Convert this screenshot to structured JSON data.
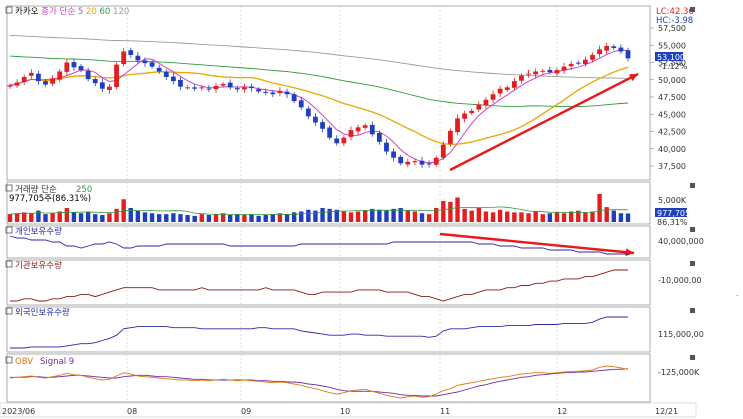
{
  "chart_data": {
    "type": "line",
    "colors": {
      "up": "#e02020",
      "down": "#1f3fbf",
      "ma5": "#cc44cc",
      "ma20": "#e8a800",
      "ma60": "#2e9a3c",
      "ma120": "#9a9a9a",
      "arrow": "#e8191b",
      "individual": "#2a2aa8",
      "institution": "#8b1a1a",
      "foreign": "#2a2aa8",
      "obv": "#e07b1a",
      "obv_signal": "#7030a0"
    },
    "x_axis": {
      "ticks": [
        "2023/06",
        "08",
        "09",
        "10",
        "11",
        "12",
        "12/21"
      ]
    },
    "price_panel": {
      "title_parts": [
        {
          "text": "카카오",
          "color": "#000000"
        },
        {
          "text": "종가 단순",
          "color": "#cc44cc"
        },
        {
          "text": "5",
          "color": "#cc44cc"
        },
        {
          "text": "20",
          "color": "#e8a800"
        },
        {
          "text": "60",
          "color": "#2e9a3c"
        },
        {
          "text": "120",
          "color": "#9a9a9a"
        }
      ],
      "lc": "LC:42.36",
      "hc": "HC:-3.98",
      "y_ticks": [
        "57,500",
        "55,000",
        "52,500",
        "50,000",
        "47,500",
        "45,000",
        "42,500",
        "40,000",
        "37,500"
      ],
      "last_price": "53,100",
      "last_change": "-1.12%",
      "trend": "rising",
      "closes": [
        49200,
        49600,
        50400,
        51000,
        49800,
        49300,
        50200,
        51200,
        52500,
        51800,
        51400,
        50100,
        49500,
        48700,
        49000,
        52200,
        54100,
        53600,
        52800,
        52400,
        51900,
        51200,
        50400,
        49800,
        49000,
        48900,
        48700,
        48900,
        48700,
        49100,
        49400,
        48900,
        48600,
        48900,
        48800,
        48300,
        48100,
        47900,
        48400,
        47900,
        46900,
        46000,
        44700,
        43800,
        42900,
        41600,
        40800,
        41600,
        42700,
        43100,
        43400,
        42100,
        41000,
        39600,
        38700,
        37900,
        38100,
        38200,
        37700,
        37800,
        38700,
        40600,
        42600,
        44400,
        45100,
        45500,
        46400,
        47100,
        47900,
        48700,
        48900,
        49800,
        50600,
        50900,
        51200,
        51300,
        51100,
        51400,
        51900,
        52300,
        52400,
        52900,
        53600,
        54400,
        54900,
        54600,
        54100,
        53100
      ]
    },
    "volume_panel": {
      "title": "거래량 단순",
      "period": "250",
      "info": "977,705주(86.31%)",
      "y_ticks": [
        "5,000K"
      ],
      "last_label": "977,705",
      "pct_label": "86.31%",
      "volumes": [
        900,
        1000,
        1100,
        1000,
        1300,
        900,
        1000,
        1200,
        1600,
        1100,
        1000,
        1200,
        900,
        800,
        1000,
        1500,
        2600,
        1600,
        1300,
        1100,
        1000,
        900,
        900,
        1000,
        900,
        800,
        700,
        900,
        800,
        900,
        1000,
        800,
        900,
        800,
        900,
        700,
        800,
        900,
        1000,
        900,
        1100,
        1200,
        1400,
        1300,
        1600,
        1500,
        1400,
        1200,
        1100,
        1200,
        1300,
        1500,
        1400,
        1300,
        1500,
        1600,
        1300,
        1200,
        1000,
        900,
        1600,
        2400,
        2300,
        2800,
        1500,
        1300,
        1600,
        1200,
        1100,
        1400,
        1200,
        1100,
        1100,
        1000,
        1200,
        900,
        1000,
        1100,
        1000,
        1200,
        1300,
        1100,
        1200,
        3200,
        1700,
        1300,
        1000,
        978
      ]
    },
    "individual_panel": {
      "title": "개인보유수량",
      "y_ticks": [
        "40,000,000"
      ],
      "values": [
        46,
        45,
        45,
        44,
        44,
        44,
        43,
        43,
        41,
        41,
        40,
        41,
        42,
        42,
        43,
        42,
        40,
        40,
        41,
        41,
        41,
        41,
        42,
        42,
        42,
        42,
        42,
        42,
        42,
        42,
        42,
        41,
        41,
        41,
        41,
        41,
        41,
        41,
        41,
        41,
        41,
        42,
        42,
        42,
        42,
        42,
        42,
        42,
        42,
        42,
        42,
        42,
        42,
        42,
        43,
        43,
        43,
        43,
        43,
        43,
        43,
        43,
        43,
        43,
        43,
        43,
        42,
        42,
        42,
        41,
        41,
        41,
        40,
        40,
        40,
        40,
        39,
        39,
        39,
        39,
        38,
        38,
        38,
        38,
        37,
        37,
        37,
        37
      ]
    },
    "institution_panel": {
      "title": "기관보유수량",
      "y_ticks": [
        "-10,000,00"
      ],
      "values": [
        -20,
        -20,
        -19,
        -19,
        -20,
        -20,
        -19,
        -19,
        -18,
        -18,
        -17,
        -17,
        -18,
        -17,
        -16,
        -15,
        -14,
        -14,
        -14,
        -14,
        -14,
        -15,
        -15,
        -15,
        -15,
        -15,
        -15,
        -14,
        -15,
        -15,
        -15,
        -15,
        -15,
        -15,
        -15,
        -15,
        -14,
        -15,
        -15,
        -15,
        -15,
        -16,
        -17,
        -17,
        -16,
        -16,
        -16,
        -16,
        -16,
        -15,
        -15,
        -15,
        -15,
        -16,
        -16,
        -16,
        -16,
        -17,
        -18,
        -18,
        -19,
        -20,
        -19,
        -18,
        -17,
        -17,
        -16,
        -15,
        -15,
        -15,
        -14,
        -14,
        -13,
        -13,
        -12,
        -12,
        -11,
        -11,
        -10,
        -10,
        -10,
        -9,
        -9,
        -8,
        -7,
        -6,
        -6,
        -6
      ]
    },
    "foreign_panel": {
      "title": "외국인보유수량",
      "y_ticks": [
        "115,000,00"
      ],
      "values": [
        88,
        88,
        88,
        89,
        89,
        89,
        89,
        89,
        90,
        91,
        92,
        92,
        93,
        95,
        97,
        100,
        106,
        107,
        108,
        108,
        108,
        108,
        108,
        107,
        107,
        107,
        107,
        106,
        106,
        106,
        106,
        106,
        106,
        106,
        106,
        107,
        107,
        106,
        106,
        106,
        106,
        104,
        103,
        102,
        101,
        100,
        100,
        100,
        101,
        101,
        100,
        100,
        100,
        99,
        99,
        99,
        99,
        99,
        99,
        98,
        99,
        104,
        106,
        106,
        106,
        107,
        108,
        108,
        108,
        108,
        109,
        109,
        109,
        109,
        110,
        110,
        110,
        110,
        111,
        111,
        111,
        111,
        112,
        115,
        117,
        117,
        117,
        117
      ]
    },
    "obv_panel": {
      "title": "OBV",
      "signal": "Signal 9",
      "y_ticks": [
        "-125,000K"
      ],
      "obv": [
        -130,
        -129,
        -128,
        -127,
        -129,
        -130,
        -128,
        -126,
        -123,
        -125,
        -126,
        -129,
        -131,
        -133,
        -132,
        -127,
        -122,
        -124,
        -127,
        -128,
        -129,
        -130,
        -131,
        -132,
        -133,
        -133,
        -134,
        -133,
        -134,
        -133,
        -132,
        -133,
        -134,
        -133,
        -134,
        -135,
        -136,
        -137,
        -136,
        -137,
        -139,
        -141,
        -144,
        -146,
        -149,
        -152,
        -154,
        -152,
        -149,
        -148,
        -147,
        -150,
        -153,
        -156,
        -158,
        -160,
        -158,
        -157,
        -159,
        -158,
        -154,
        -149,
        -146,
        -141,
        -139,
        -137,
        -135,
        -133,
        -131,
        -129,
        -128,
        -126,
        -124,
        -123,
        -122,
        -122,
        -123,
        -122,
        -121,
        -120,
        -120,
        -119,
        -118,
        -114,
        -112,
        -113,
        -115,
        -117
      ],
      "signal_values": [
        -129,
        -129,
        -129,
        -128,
        -128,
        -129,
        -129,
        -128,
        -127,
        -126,
        -126,
        -127,
        -128,
        -129,
        -130,
        -130,
        -128,
        -127,
        -126,
        -126,
        -127,
        -128,
        -128,
        -129,
        -130,
        -131,
        -132,
        -132,
        -133,
        -133,
        -133,
        -133,
        -133,
        -133,
        -133,
        -134,
        -134,
        -135,
        -135,
        -136,
        -136,
        -137,
        -139,
        -140,
        -142,
        -144,
        -147,
        -149,
        -150,
        -150,
        -150,
        -150,
        -151,
        -152,
        -153,
        -155,
        -156,
        -156,
        -157,
        -157,
        -157,
        -155,
        -153,
        -151,
        -148,
        -145,
        -142,
        -140,
        -137,
        -135,
        -133,
        -131,
        -129,
        -128,
        -126,
        -125,
        -124,
        -123,
        -122,
        -122,
        -121,
        -121,
        -120,
        -119,
        -118,
        -117,
        -117,
        -116
      ]
    }
  }
}
